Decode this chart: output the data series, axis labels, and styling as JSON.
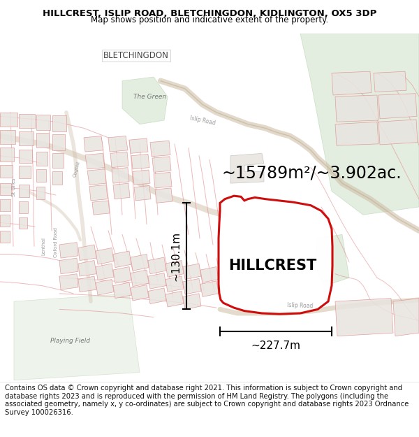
{
  "title": "HILLCREST, ISLIP ROAD, BLETCHINGDON, KIDLINGTON, OX5 3DP",
  "subtitle": "Map shows position and indicative extent of the property.",
  "area_text": "~15789m²/~3.902ac.",
  "label": "HILLCREST",
  "dim_width": "~227.7m",
  "dim_height": "~130.1m",
  "footer": "Contains OS data © Crown copyright and database right 2021. This information is subject to Crown copyright and database rights 2023 and is reproduced with the permission of HM Land Registry. The polygons (including the associated geometry, namely x, y co-ordinates) are subject to Crown copyright and database rights 2023 Ordnance Survey 100026316.",
  "bg_color": "#fafaf8",
  "building_color": "#e8e4e0",
  "building_edge": "#e09090",
  "road_line_color": "#e09090",
  "green_color": "#d8e8d4",
  "title_fontsize": 9.5,
  "subtitle_fontsize": 8.5,
  "area_fontsize": 17,
  "label_fontsize": 15,
  "dim_fontsize": 11,
  "footer_fontsize": 7.2,
  "prop_edge": "#cc0000",
  "prop_fill": "#ffffff",
  "prop_lw": 2.2,
  "bletchingdon_label": "BLETCHINGDON",
  "the_green_label": "The Green",
  "playing_field_label": "Playing Field",
  "lenthal_label": "Lenthal",
  "oxford_road_label": "Oxford Road",
  "st_giles_label": "St Giles",
  "coghill_label": "Coghill",
  "islip_road_label": "Islip Road",
  "islip_road2_label": "Islip Road"
}
